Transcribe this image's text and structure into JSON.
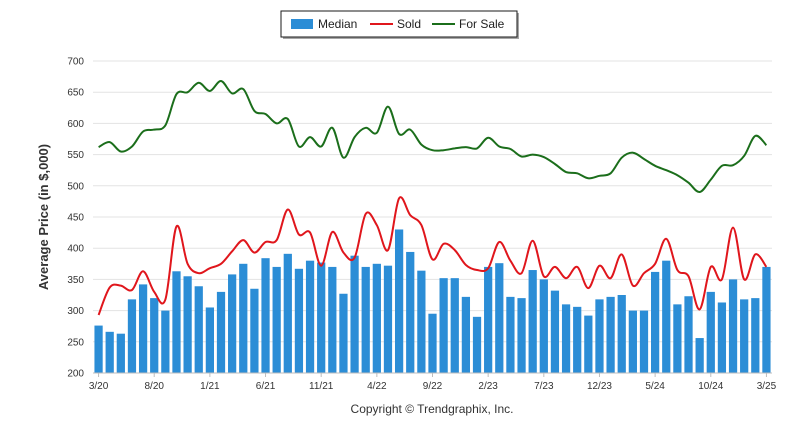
{
  "chart_data": {
    "type": "bar",
    "title": "",
    "xlabel": "",
    "ylabel": "Average Price (in $,000)",
    "ylim": [
      200,
      700
    ],
    "yticks": [
      200,
      250,
      300,
      350,
      400,
      450,
      500,
      550,
      600,
      650,
      700
    ],
    "xtick_labels": [
      "3/20",
      "8/20",
      "1/21",
      "6/21",
      "11/21",
      "4/22",
      "9/22",
      "2/23",
      "7/23",
      "12/23",
      "5/24",
      "10/24",
      "3/25"
    ],
    "x": [
      "3/20",
      "4/20",
      "5/20",
      "6/20",
      "7/20",
      "8/20",
      "9/20",
      "10/20",
      "11/20",
      "12/20",
      "1/21",
      "2/21",
      "3/21",
      "4/21",
      "5/21",
      "6/21",
      "7/21",
      "8/21",
      "9/21",
      "10/21",
      "11/21",
      "12/21",
      "1/22",
      "2/22",
      "3/22",
      "4/22",
      "5/22",
      "6/22",
      "7/22",
      "8/22",
      "9/22",
      "10/22",
      "11/22",
      "12/22",
      "1/23",
      "2/23",
      "3/23",
      "4/23",
      "5/23",
      "6/23",
      "7/23",
      "8/23",
      "9/23",
      "10/23",
      "11/23",
      "12/23",
      "1/24",
      "2/24",
      "3/24",
      "4/24",
      "5/24",
      "6/24",
      "7/24",
      "8/24",
      "9/24",
      "10/24",
      "11/24",
      "12/24",
      "1/25",
      "2/25",
      "3/25"
    ],
    "grid": true,
    "legend_position": "top-center",
    "series": [
      {
        "name": "Median",
        "kind": "bar",
        "color": "#2b8dd6",
        "values": [
          276,
          266,
          263,
          318,
          342,
          320,
          300,
          363,
          355,
          339,
          305,
          330,
          358,
          375,
          335,
          384,
          370,
          391,
          367,
          380,
          377,
          370,
          327,
          388,
          370,
          375,
          372,
          430,
          394,
          364,
          295,
          352,
          352,
          322,
          290,
          370,
          376,
          322,
          320,
          365,
          350,
          332,
          310,
          306,
          292,
          318,
          322,
          325,
          300,
          300,
          362,
          380,
          310,
          323,
          256,
          330,
          313,
          350,
          318,
          320,
          370
        ]
      },
      {
        "name": "Sold",
        "kind": "line",
        "color": "#e0161c",
        "values": [
          293,
          337,
          340,
          333,
          363,
          330,
          318,
          435,
          375,
          360,
          368,
          375,
          395,
          413,
          393,
          410,
          413,
          462,
          422,
          425,
          372,
          426,
          393,
          385,
          455,
          437,
          397,
          480,
          453,
          437,
          382,
          407,
          397,
          373,
          365,
          368,
          410,
          380,
          360,
          412,
          355,
          370,
          352,
          370,
          336,
          372,
          352,
          390,
          340,
          360,
          375,
          415,
          365,
          355,
          302,
          370,
          350,
          433,
          350,
          390,
          370
        ]
      },
      {
        "name": "For Sale",
        "kind": "line",
        "color": "#1b6e1b",
        "values": [
          562,
          570,
          555,
          563,
          587,
          590,
          597,
          647,
          650,
          665,
          652,
          668,
          648,
          655,
          620,
          615,
          600,
          607,
          563,
          578,
          563,
          593,
          545,
          578,
          593,
          585,
          627,
          583,
          590,
          566,
          557,
          557,
          560,
          562,
          560,
          577,
          563,
          559,
          547,
          550,
          546,
          535,
          522,
          520,
          512,
          516,
          520,
          545,
          553,
          543,
          532,
          525,
          517,
          505,
          490,
          510,
          532,
          533,
          548,
          580,
          565
        ]
      }
    ]
  },
  "legend": [
    {
      "label": "Median",
      "color": "#2b8dd6",
      "kind": "bar"
    },
    {
      "label": "Sold",
      "color": "#e0161c",
      "kind": "line"
    },
    {
      "label": "For Sale",
      "color": "#1b6e1b",
      "kind": "line"
    }
  ],
  "footer": {
    "copyright": "Copyright © Trendgraphix, Inc."
  }
}
